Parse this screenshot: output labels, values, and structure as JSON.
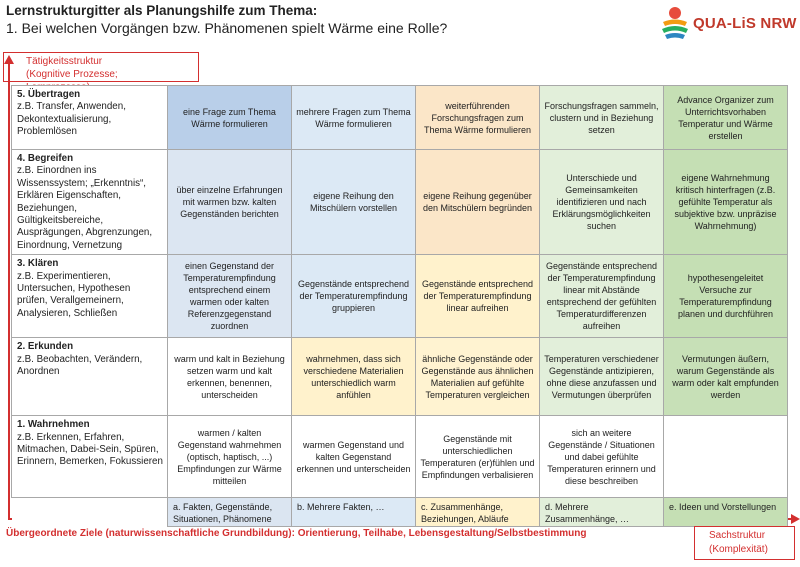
{
  "header": {
    "title": "Lernstrukturgitter als Planungshilfe zum Thema:",
    "subtitle": "1. Bei welchen Vorgängen bzw. Phänomenen spielt Wärme eine Rolle?"
  },
  "logo": {
    "text": "QUA-LiS NRW"
  },
  "y_axis": {
    "label_1": "Tätigkeitsstruktur",
    "label_2": "(Kognitive Prozesse; Lernprozesse)"
  },
  "x_axis": {
    "label_1": "Sachstruktur",
    "label_2": "(Komplexität)"
  },
  "goals": "Übergeordnete Ziele (naturwissenschaftliche Grundbildung): Orientierung, Teilhabe, Lebensgestaltung/Selbstbestimmung",
  "rows": [
    {
      "title": "5. Übertragen",
      "desc": "z.B. Transfer, Anwenden, Dekontextualisierung, Problemlösen",
      "cells": [
        "eine Frage zum Thema Wärme formulieren",
        "mehrere Fragen zum Thema Wärme formulieren",
        "weiterführenden Forschungsfragen zum Thema Wärme formulieren",
        "Forschungsfragen sammeln, clustern und in Beziehung setzen",
        "Advance Organizer zum Unterrichtsvorhaben Temperatur und Wärme erstellen"
      ]
    },
    {
      "title": "4. Begreifen",
      "desc": "z.B. Einordnen ins Wissenssystem; „Erkenntnis“, Erklären Eigenschaften, Beziehungen, Gültigkeitsbereiche, Ausprägungen, Abgrenzungen, Einordnung, Vernetzung",
      "cells": [
        "über einzelne Erfahrungen mit warmen bzw. kalten Gegenständen berichten",
        "eigene Reihung den Mitschülern vorstellen",
        "eigene Reihung gegenüber den Mitschülern begründen",
        "Unterschiede und Gemeinsamkeiten identifizieren und nach Erklärungsmöglichkeiten suchen",
        "eigene Wahrnehmung kritisch hinterfragen (z.B. gefühlte Temperatur als subjektive bzw. unpräzise Wahrnehmung)"
      ]
    },
    {
      "title": "3. Klären",
      "desc": "z.B. Experimentieren, Untersuchen, Hypothesen prüfen, Verallgemeinern, Analysieren, Schließen",
      "cells": [
        "einen Gegenstand der Temperaturempfindung entsprechend einem warmen oder kalten Referenzgegenstand zuordnen",
        "Gegenstände entsprechend der Temperaturempfindung gruppieren",
        "Gegenstände entsprechend der Temperaturempfindung linear aufreihen",
        "Gegenstände entsprechend der Temperaturempfindung linear mit Abstände entsprechend der gefühlten Temperaturdifferenzen aufreihen",
        "hypothesengeleitet Versuche zur Temperaturempfindung planen und durchführen"
      ]
    },
    {
      "title": "2. Erkunden",
      "desc": "z.B. Beobachten, Verändern, Anordnen",
      "cells": [
        "warm und kalt in Beziehung setzen warm und kalt erkennen, benennen, unterscheiden",
        "wahrnehmen, dass sich verschiedene Materialien unterschiedlich warm anfühlen",
        "ähnliche Gegenstände oder Gegenstände aus ähnlichen Materialien auf gefühlte Temperaturen vergleichen",
        "Temperaturen verschiedener Gegenstände antizipieren, ohne diese anzufassen und Vermutungen überprüfen",
        "Vermutungen äußern, warum Gegenstände als warm oder kalt empfunden werden"
      ]
    },
    {
      "title": "1. Wahrnehmen",
      "desc": "z.B. Erkennen, Erfahren, Mitmachen, Dabei-Sein, Spüren, Erinnern, Bemerken, Fokussieren",
      "cells": [
        "warmen / kalten Gegenstand wahrnehmen (optisch, haptisch, ...) Empfindungen zur Wärme mitteilen",
        "warmen Gegenstand und kalten Gegenstand erkennen und unterscheiden",
        "Gegenstände mit unterschiedlichen Temperaturen (er)fühlen und Empfindungen verbalisieren",
        "sich an weitere Gegenstände / Situationen und dabei gefühlte Temperaturen erinnern und diese beschreiben",
        ""
      ]
    }
  ],
  "columns": [
    "a. Fakten, Gegenstände, Situationen, Phänomene",
    "b. Mehrere Fakten, …",
    "c. Zusammenhänge, Beziehungen, Abläufe",
    "d. Mehrere Zusammenhänge, …",
    "e. Ideen und Vorstellungen"
  ]
}
